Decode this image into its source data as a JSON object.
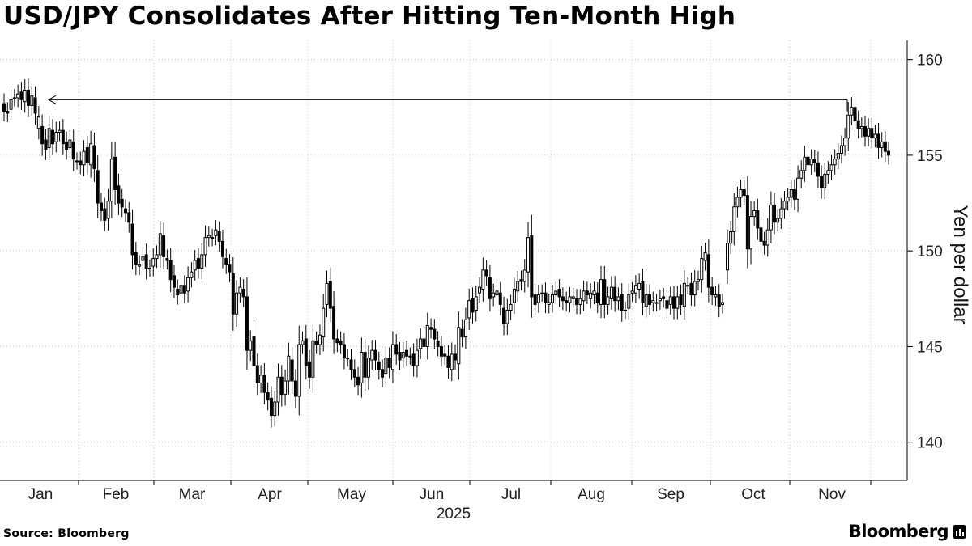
{
  "title": "USD/JPY Consolidates After Hitting Ten-Month High",
  "source": "Source: Bloomberg",
  "brand": "Bloomberg",
  "chart_data": {
    "type": "candlestick",
    "ylabel": "Yen per dollar",
    "year_label": "2025",
    "ylim": [
      138,
      161
    ],
    "y_ticks": [
      140,
      145,
      150,
      155,
      160
    ],
    "x_ticks": [
      "Jan",
      "Feb",
      "Mar",
      "Apr",
      "May",
      "Jun",
      "Jul",
      "Aug",
      "Sep",
      "Oct",
      "Nov"
    ],
    "grid": "dotted, horizontal at y ticks and vertical at month boundaries",
    "annotation": "arrow from the November high back to the January high",
    "colors": {
      "up": "#ffffff",
      "down": "#000000",
      "wick": "#000000",
      "grid": "#c8c8c8",
      "axis": "#000000"
    },
    "series": [
      {
        "close": [
          157.3,
          157.2,
          157.9,
          158.0,
          158.2,
          157.9,
          158.4,
          157.6,
          158.1,
          157.2,
          157.0,
          155.6,
          155.3,
          156.4,
          155.6,
          156.2,
          156.3,
          155.6,
          155.3,
          155.8,
          154.8,
          154.7,
          154.5,
          155.2,
          154.6,
          155.6,
          154.3,
          152.5,
          152.1,
          151.6,
          152.6,
          154.8,
          153.2,
          152.5,
          152.3,
          152.0,
          151.5,
          149.8,
          149.3,
          149.3,
          149.7,
          149.1,
          149.1,
          149.6,
          149.8,
          150.9,
          149.7,
          149.5,
          148.5,
          148.1,
          147.7,
          148.2,
          147.8,
          148.6,
          148.9,
          149.5,
          149.1,
          149.8,
          150.7,
          150.8,
          150.7,
          151.1,
          150.5,
          149.7,
          149.3,
          148.9,
          146.7,
          147.8,
          148.1,
          147.6,
          144.8,
          145.3,
          144.0,
          143.1,
          143.5,
          142.6,
          142.2,
          141.4,
          142.1,
          143.4,
          142.5,
          143.2,
          144.5,
          143.2,
          142.4,
          145.1,
          145.3,
          144.0,
          143.4,
          145.3,
          145.1,
          145.6,
          147.0,
          148.3,
          147.0,
          145.4,
          145.2,
          145.1,
          144.4,
          144.4,
          143.8,
          143.4,
          143.0,
          144.7,
          143.4,
          144.4,
          144.8,
          144.3,
          143.8,
          143.4,
          144.4,
          143.9,
          145.1,
          144.6,
          144.3,
          144.7,
          144.5,
          144.5,
          144.0,
          144.8,
          145.4,
          145.0,
          146.1,
          145.9,
          145.4,
          145.0,
          144.5,
          144.5,
          143.9,
          144.6,
          144.3,
          146.0,
          145.5,
          146.4,
          147.4,
          146.8,
          147.6,
          148.1,
          149.0,
          148.7,
          147.5,
          147.8,
          147.9,
          147.2,
          146.2,
          146.9,
          147.2,
          148.0,
          148.4,
          148.4,
          149.0,
          150.7,
          147.6,
          147.2,
          147.7,
          147.8,
          147.3,
          147.3,
          147.7,
          147.9,
          147.6,
          147.4,
          147.3,
          147.6,
          147.6,
          147.2,
          147.5,
          147.9,
          147.7,
          147.8,
          147.9,
          147.3,
          148.5,
          147.2,
          147.6,
          148.1,
          147.4,
          147.6,
          146.9,
          146.9,
          147.7,
          147.9,
          148.2,
          148.3,
          147.3,
          147.7,
          147.2,
          147.4,
          147.3,
          147.5,
          147.5,
          147.0,
          147.6,
          147.0,
          147.6,
          147.2,
          148.3,
          148.2,
          147.7,
          148.4,
          148.5,
          149.6,
          149.9,
          148.1,
          147.7,
          147.7,
          147.1,
          147.3
        ],
        "open": [
          157.7,
          157.3,
          157.4,
          158.0,
          158.0,
          158.3,
          157.8,
          158.4,
          157.6,
          158.0,
          156.4,
          156.5,
          155.8,
          155.4,
          156.3,
          155.7,
          156.2,
          156.3,
          155.7,
          155.4,
          155.7,
          154.7,
          154.7,
          154.5,
          155.4,
          154.5,
          155.5,
          154.2,
          152.5,
          152.2,
          151.7,
          152.6,
          154.9,
          153.4,
          152.7,
          152.2,
          152.0,
          151.4,
          149.9,
          149.2,
          149.5,
          149.8,
          149.1,
          149.2,
          149.6,
          149.8,
          150.8,
          149.6,
          149.5,
          148.7,
          148.0,
          147.8,
          148.2,
          147.9,
          148.6,
          149.0,
          149.6,
          149.1,
          149.8,
          150.7,
          150.7,
          150.8,
          151.0,
          150.5,
          149.6,
          149.3,
          148.8,
          146.7,
          147.8,
          148.0,
          147.6,
          144.8,
          145.5,
          144.0,
          143.1,
          143.5,
          142.6,
          142.3,
          141.4,
          142.1,
          143.4,
          142.5,
          143.2,
          144.3,
          143.2,
          142.4,
          145.1,
          145.4,
          144.2,
          143.4,
          145.3,
          145.1,
          145.5,
          147.2,
          148.4,
          147.1,
          145.4,
          145.3,
          145.1,
          144.4,
          144.3,
          143.8,
          143.4,
          143.1,
          144.7,
          143.4,
          144.3,
          144.8,
          144.2,
          143.8,
          143.6,
          144.4,
          143.8,
          145.1,
          144.7,
          144.4,
          144.8,
          144.5,
          144.6,
          144.0,
          144.9,
          145.4,
          145.0,
          146.0,
          145.9,
          145.3,
          145.0,
          144.6,
          144.5,
          143.8,
          144.6,
          144.1,
          145.9,
          145.5,
          146.5,
          147.5,
          146.9,
          147.8,
          148.0,
          149.0,
          148.6,
          147.6,
          147.7,
          147.8,
          147.0,
          146.2,
          146.9,
          147.3,
          147.9,
          148.5,
          148.4,
          148.9,
          150.8,
          147.7,
          147.3,
          147.8,
          147.8,
          147.2,
          147.3,
          147.7,
          148.0,
          147.6,
          147.4,
          147.3,
          147.5,
          147.5,
          147.2,
          147.4,
          147.9,
          147.5,
          147.7,
          147.8,
          147.2,
          148.5,
          147.2,
          147.5,
          148.1,
          147.4,
          147.7,
          146.9,
          147.0,
          147.8,
          147.8,
          148.0,
          148.4,
          147.1,
          147.7,
          147.3,
          147.3,
          147.4,
          147.6,
          147.4,
          147.2,
          147.6,
          147.0,
          147.7,
          147.1,
          148.2,
          148.3,
          147.7,
          148.4,
          148.5,
          149.5,
          149.8,
          148.1,
          147.6,
          147.7,
          147.2
        ]
      },
      {
        "close": [
          150.4,
          151.0,
          152.3,
          152.8,
          153.2,
          152.9,
          150.1,
          151.8,
          152.1,
          151.2,
          150.5,
          150.3,
          151.1,
          152.4,
          151.5,
          151.7,
          152.2,
          152.6,
          152.8,
          153.2,
          152.7,
          153.8,
          154.2,
          154.9,
          154.5,
          154.8,
          154.6,
          153.9,
          153.3,
          154.0,
          154.2,
          154.5,
          154.8,
          155.1,
          155.5,
          155.9,
          157.1,
          157.5,
          156.8,
          156.4,
          156.5,
          156.0,
          156.4,
          155.9,
          156.1,
          155.4,
          155.7,
          155.2,
          155.0
        ]
      }
    ],
    "notes": "series[0] is Jan through late September (OHLC open/close estimated); series[1] is the second segment (late Sep through Nov) shown after the chart gap; each close is estimated from the candle bodies."
  }
}
